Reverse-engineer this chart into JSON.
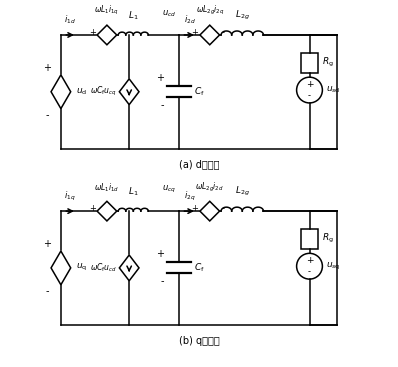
{
  "title_a": "(a) d轴回路",
  "title_b": "(b) q轴回路",
  "bg_color": "#ffffff",
  "line_color": "#000000",
  "circuit_a": {
    "i_left": "i_{1d}",
    "vL1": "\\omega L_1 i_{1q}",
    "L1": "L_1",
    "uc": "u_{cd}",
    "i_mid": "i_{2d}",
    "vL2g": "\\omega L_{2g} i_{2q}",
    "L2g": "L_{2g}",
    "u_src": "u_{\\mathrm{d}}",
    "wCf": "\\omega C_{\\mathrm{f}} u_{cq}",
    "Cf": "C_{\\mathrm{f}}",
    "Rg": "R_{\\mathrm{g}}",
    "u_out": "u_{s\\mathrm{d}}"
  },
  "circuit_b": {
    "i_left": "i_{1q}",
    "vL1": "\\omega L_1 i_{1d}",
    "L1": "L_1",
    "uc": "u_{cq}",
    "i_mid": "i_{2q}",
    "vL2g": "\\omega L_{2g} i_{2d}",
    "L2g": "L_{2g}",
    "u_src": "u_{\\mathrm{q}}",
    "wCf": "\\omega C_{\\mathrm{f}} u_{cd}",
    "Cf": "C_{\\mathrm{f}}",
    "Rg": "R_{\\mathrm{g}}",
    "u_out": "u_{s\\mathrm{q}}"
  }
}
